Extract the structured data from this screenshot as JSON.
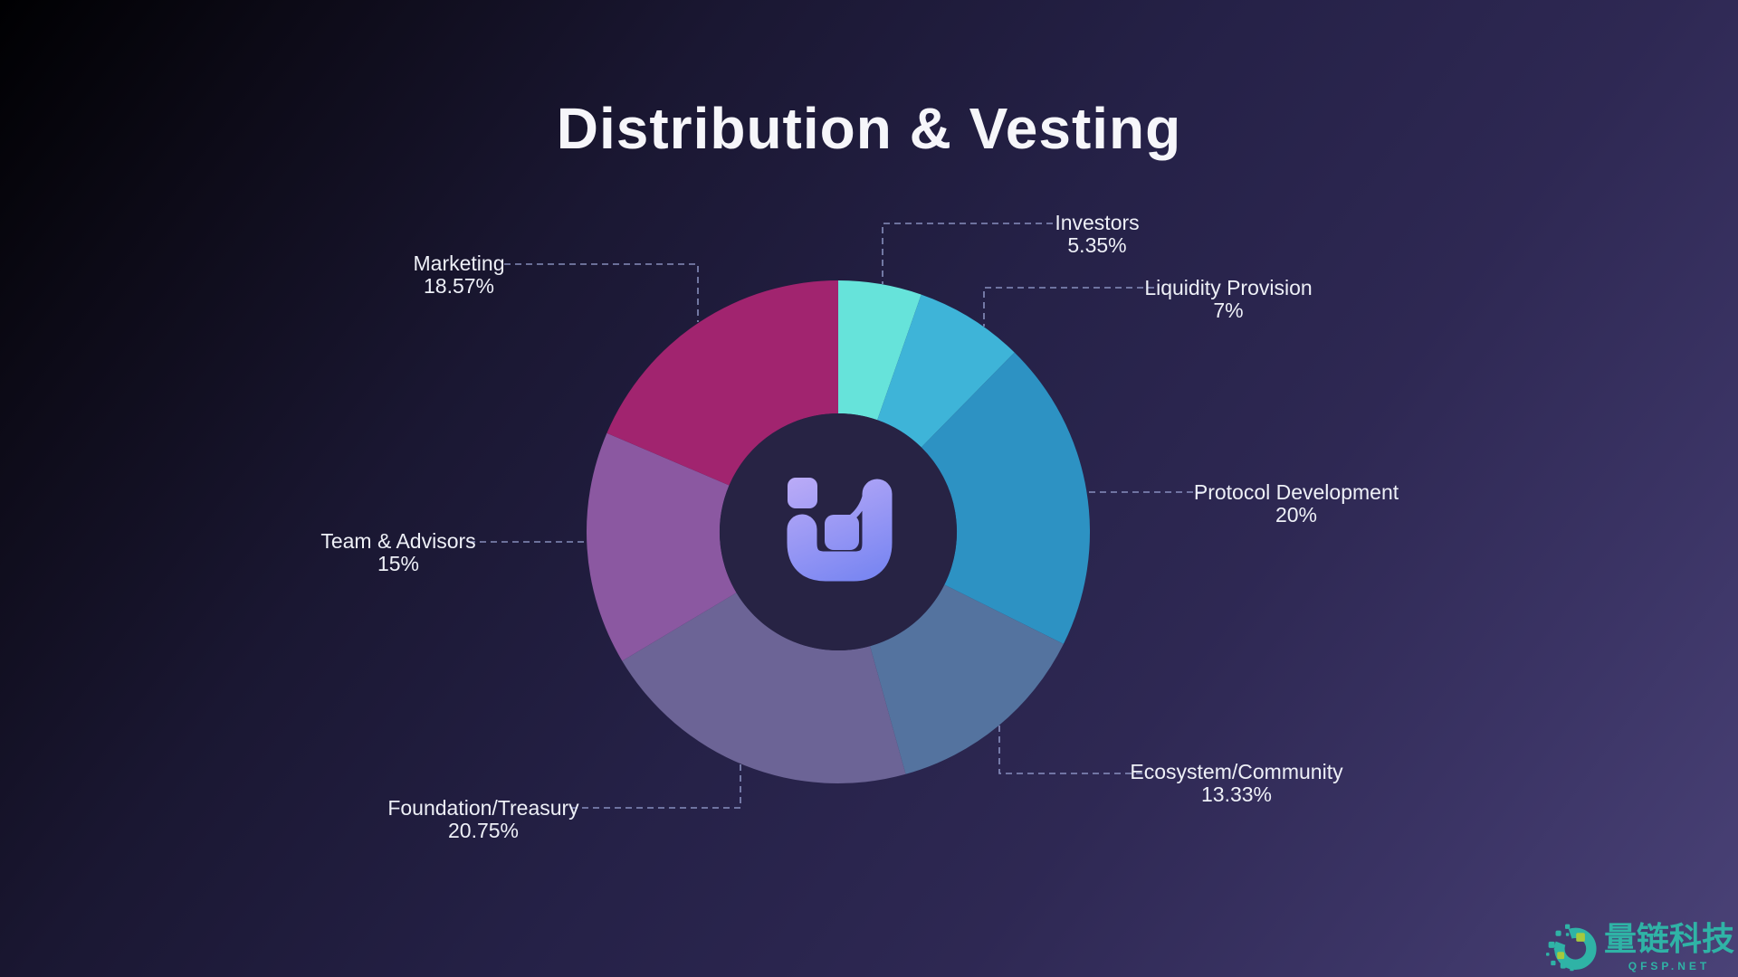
{
  "title": "Distribution & Vesting",
  "chart_data": {
    "type": "pie",
    "variant": "donut",
    "title": "Distribution & Vesting",
    "direction": "clockwise",
    "start_angle_deg": 0,
    "inner_radius_ratio": 0.47,
    "legend_position": "callout-labels",
    "categories": [
      "Investors",
      "Liquidity Provision",
      "Protocol Development",
      "Ecosystem/Community",
      "Foundation/Treasury",
      "Team & Advisors",
      "Marketing"
    ],
    "values": [
      5.35,
      7,
      20,
      13.33,
      20.75,
      15,
      18.57
    ],
    "slices": [
      {
        "id": "investors",
        "label": "Investors",
        "value": 5.35,
        "value_label": "5.35%",
        "color": "#66e3da"
      },
      {
        "id": "liquidity",
        "label": "Liquidity Provision",
        "value": 7,
        "value_label": "7%",
        "color": "#3eb4d8"
      },
      {
        "id": "protocol",
        "label": "Protocol Development",
        "value": 20,
        "value_label": "20%",
        "color": "#2d92c3"
      },
      {
        "id": "ecosystem",
        "label": "Ecosystem/Community",
        "value": 13.33,
        "value_label": "13.33%",
        "color": "#54739f"
      },
      {
        "id": "foundation",
        "label": "Foundation/Treasury",
        "value": 20.75,
        "value_label": "20.75%",
        "color": "#6c6496"
      },
      {
        "id": "team",
        "label": "Team & Advisors",
        "value": 15,
        "value_label": "15%",
        "color": "#8b58a1"
      },
      {
        "id": "marketing",
        "label": "Marketing",
        "value": 18.57,
        "value_label": "18.57%",
        "color": "#a1246f"
      }
    ]
  },
  "colors": {
    "background_start": "#000002",
    "background_end": "#4a4277",
    "leader_line": "#99a2d2",
    "label_text": "#eef0f7",
    "title_text": "#f6f6fa",
    "donut_hole": "#272344",
    "logo_gradient_start": "#b9aaf7",
    "logo_gradient_end": "#7b87f2"
  },
  "watermark": {
    "brand": "量链科技",
    "domain": "QFSP.NET",
    "color": "#2fb3a6",
    "accent_color": "#a6c93d"
  }
}
